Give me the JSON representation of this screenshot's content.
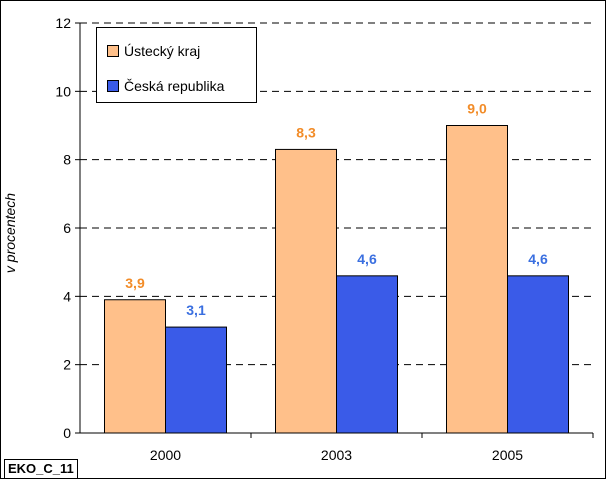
{
  "chart_data": {
    "type": "bar",
    "categories": [
      "2000",
      "2003",
      "2005"
    ],
    "series": [
      {
        "name": "Ústecký kraj",
        "values": [
          3.9,
          8.3,
          9.0
        ],
        "labels": [
          "3,9",
          "8,3",
          "9,0"
        ],
        "color": "#FFC08A",
        "label_color": "#F28C28"
      },
      {
        "name": "Česká republika",
        "values": [
          3.1,
          4.6,
          4.6
        ],
        "labels": [
          "3,1",
          "4,6",
          "4,6"
        ],
        "color": "#3A5BE8",
        "label_color": "#3A6FE0"
      }
    ],
    "ylabel": "v procentech",
    "xlabel": "",
    "ylim": [
      0,
      12
    ],
    "yticks": [
      "0",
      "2",
      "4",
      "6",
      "8",
      "10",
      "12"
    ],
    "grid": true,
    "legend_position": "top-left"
  },
  "footer": {
    "tag": "EKO_C_11"
  }
}
